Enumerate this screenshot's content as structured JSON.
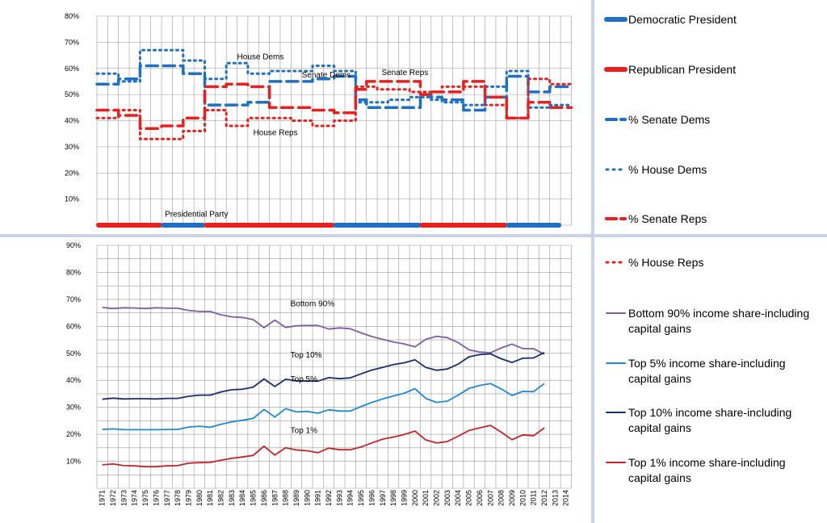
{
  "colors": {
    "dem_blue": "#1f6fc4",
    "rep_red": "#e8201e",
    "bottom90": "#7f5fa0",
    "top5": "#1e8ad2",
    "top10": "#1a2f6e",
    "top1": "#c3242b",
    "grid": "#9a9a9a",
    "splitter": "#c8d3e6"
  },
  "legend": {
    "items": [
      {
        "label": "Democratic President",
        "style": "dem-bar"
      },
      {
        "label": "Republican President",
        "style": "rep-bar"
      },
      {
        "label": "% Senate Dems",
        "style": "dem-dash"
      },
      {
        "label": "% House Dems",
        "style": "dem-dot"
      },
      {
        "label": "% Senate Reps",
        "style": "rep-dash"
      },
      {
        "label": "% House Reps",
        "style": "rep-dot"
      },
      {
        "label": "Bottom 90% income share-including capital gains",
        "line1": "Bottom 90% income share-including",
        "line2": "capital gains",
        "style": "bottom90"
      },
      {
        "label": "Top 5% income share-including capital gains",
        "line1": "Top 5% income share-including",
        "line2": "capital gains",
        "style": "top5"
      },
      {
        "label": "Top 10% income share-including capital gains",
        "line1": "Top 10% income share-including",
        "line2": "capital gains",
        "style": "top10"
      },
      {
        "label": "Top 1% income share-including capital gains",
        "line1": "Top 1% income share-including",
        "line2": "capital gains",
        "style": "top1"
      }
    ]
  },
  "chart_data": [
    {
      "type": "line",
      "ylim": [
        0,
        80
      ],
      "yticks": [
        "10%",
        "20%",
        "30%",
        "40%",
        "50%",
        "60%",
        "70%",
        "80%"
      ],
      "x": [
        1971,
        1972,
        1973,
        1974,
        1975,
        1976,
        1977,
        1978,
        1979,
        1980,
        1981,
        1982,
        1983,
        1984,
        1985,
        1986,
        1987,
        1988,
        1989,
        1990,
        1991,
        1992,
        1993,
        1994,
        1995,
        1996,
        1997,
        1998,
        1999,
        2000,
        2001,
        2002,
        2003,
        2004,
        2005,
        2006,
        2007,
        2008,
        2009,
        2010,
        2011,
        2012,
        2013,
        2014
      ],
      "series": [
        {
          "name": "% Senate Dems",
          "values": [
            54,
            54,
            56,
            56,
            61,
            61,
            61,
            61,
            58,
            58,
            46,
            46,
            46,
            46,
            47,
            47,
            55,
            55,
            55,
            55,
            56,
            56,
            57,
            57,
            48,
            45,
            45,
            45,
            45,
            45,
            50,
            49,
            48,
            48,
            44,
            44,
            49,
            49,
            57,
            57,
            51,
            51,
            53,
            53
          ]
        },
        {
          "name": "% House Dems",
          "values": [
            58,
            58,
            55,
            55,
            67,
            67,
            67,
            67,
            63,
            63,
            56,
            56,
            62,
            62,
            58,
            58,
            59,
            59,
            59,
            59,
            61,
            61,
            59,
            59,
            47,
            47,
            47,
            48,
            48,
            49,
            49,
            48,
            47,
            47,
            46,
            46,
            53,
            53,
            59,
            59,
            45,
            45,
            46,
            46
          ]
        },
        {
          "name": "% Senate Reps",
          "values": [
            44,
            44,
            42,
            42,
            37,
            37,
            38,
            38,
            41,
            41,
            53,
            53,
            54,
            54,
            53,
            53,
            45,
            45,
            45,
            45,
            44,
            44,
            43,
            43,
            52,
            55,
            55,
            55,
            55,
            55,
            50,
            51,
            51,
            51,
            55,
            55,
            49,
            49,
            41,
            41,
            47,
            47,
            45,
            45
          ]
        },
        {
          "name": "% House Reps",
          "values": [
            41,
            41,
            44,
            44,
            33,
            33,
            33,
            33,
            36,
            36,
            44,
            44,
            38,
            38,
            41,
            41,
            41,
            41,
            40,
            40,
            38,
            38,
            40,
            40,
            53,
            53,
            52,
            52,
            52,
            51,
            51,
            51,
            53,
            53,
            53,
            53,
            46,
            46,
            41,
            41,
            56,
            56,
            54,
            54
          ]
        }
      ],
      "presidential_party": [
        {
          "party": "Republican",
          "from": 1971,
          "to": 1977
        },
        {
          "party": "Democratic",
          "from": 1977,
          "to": 1981
        },
        {
          "party": "Republican",
          "from": 1981,
          "to": 1993
        },
        {
          "party": "Democratic",
          "from": 1993,
          "to": 2001
        },
        {
          "party": "Republican",
          "from": 2001,
          "to": 2009
        },
        {
          "party": "Democratic",
          "from": 2009,
          "to": 2014
        }
      ],
      "annotations": [
        {
          "text": "House Dems",
          "x": 1984,
          "y": 63.5
        },
        {
          "text": "Senate Dems",
          "x": 1990,
          "y": 56.5
        },
        {
          "text": "Senate Reps",
          "x": 1997.4,
          "y": 57.5
        },
        {
          "text": "House Reps",
          "x": 1985.5,
          "y": 34.5
        },
        {
          "text": "Presidential Party",
          "x": 1977.3,
          "y": 3.2
        }
      ],
      "grid": true
    },
    {
      "type": "line",
      "ylim": [
        0,
        90
      ],
      "yticks": [
        "10%",
        "20%",
        "30%",
        "40%",
        "50%",
        "60%",
        "70%",
        "80%",
        "90%"
      ],
      "x": [
        1971,
        1972,
        1973,
        1974,
        1975,
        1976,
        1977,
        1978,
        1979,
        1980,
        1981,
        1982,
        1983,
        1984,
        1985,
        1986,
        1987,
        1988,
        1989,
        1990,
        1991,
        1992,
        1993,
        1994,
        1995,
        1996,
        1997,
        1998,
        1999,
        2000,
        2001,
        2002,
        2003,
        2004,
        2005,
        2006,
        2007,
        2008,
        2009,
        2010,
        2011,
        2012
      ],
      "xtick_labels": [
        "1971",
        "1972",
        "1973",
        "1974",
        "1975",
        "1976",
        "1977",
        "1978",
        "1979",
        "1980",
        "1981",
        "1982",
        "1983",
        "1984",
        "1985",
        "1986",
        "1987",
        "1988",
        "1989",
        "1990",
        "1991",
        "1992",
        "1993",
        "1994",
        "1995",
        "1996",
        "1997",
        "1998",
        "1999",
        "2000",
        "2001",
        "2002",
        "2003",
        "2004",
        "2005",
        "2006",
        "2007",
        "2008",
        "2009",
        "2010",
        "2011",
        "2012",
        "2013",
        "2014"
      ],
      "series": [
        {
          "name": "Bottom 90% income share-including capital gains",
          "values": [
            67.0,
            66.6,
            66.9,
            66.8,
            66.6,
            66.9,
            66.7,
            66.7,
            65.9,
            65.5,
            65.5,
            64.3,
            63.5,
            63.3,
            62.5,
            59.5,
            62.3,
            59.6,
            60.2,
            60.3,
            60.3,
            59.0,
            59.4,
            59.1,
            57.6,
            56.2,
            55.2,
            54.2,
            53.5,
            52.4,
            55.2,
            56.3,
            55.8,
            54.0,
            51.3,
            50.5,
            50.2,
            52.0,
            53.4,
            51.8,
            51.7,
            49.7
          ]
        },
        {
          "name": "Top 10% income share-including capital gains",
          "values": [
            33.0,
            33.4,
            33.1,
            33.2,
            33.2,
            33.1,
            33.3,
            33.3,
            34.1,
            34.5,
            34.5,
            35.7,
            36.5,
            36.7,
            37.5,
            40.5,
            37.7,
            40.4,
            39.8,
            39.7,
            39.7,
            41.0,
            40.6,
            40.9,
            42.4,
            43.8,
            44.8,
            45.8,
            46.5,
            47.6,
            44.8,
            43.7,
            44.2,
            46.0,
            48.7,
            49.5,
            49.8,
            48.0,
            46.6,
            48.2,
            48.3,
            50.3
          ]
        },
        {
          "name": "Top 5% income share-including capital gains",
          "values": [
            21.8,
            22.0,
            21.7,
            21.7,
            21.7,
            21.7,
            21.8,
            21.8,
            22.7,
            23.0,
            22.6,
            23.7,
            24.6,
            25.2,
            25.9,
            29.2,
            26.4,
            29.5,
            28.3,
            28.5,
            27.8,
            29.1,
            28.6,
            28.6,
            30.3,
            31.8,
            33.1,
            34.2,
            35.2,
            36.9,
            33.3,
            31.8,
            32.3,
            34.5,
            37.0,
            38.1,
            38.8,
            36.8,
            34.4,
            35.9,
            35.8,
            38.8
          ]
        },
        {
          "name": "Top 1% income share-including capital gains",
          "values": [
            8.7,
            9.0,
            8.4,
            8.3,
            8.0,
            8.0,
            8.3,
            8.4,
            9.3,
            9.5,
            9.6,
            10.4,
            11.1,
            11.6,
            12.2,
            15.6,
            12.3,
            15.0,
            14.2,
            13.9,
            13.2,
            14.9,
            14.3,
            14.3,
            15.3,
            16.8,
            18.2,
            19.0,
            19.9,
            21.2,
            17.9,
            16.8,
            17.3,
            19.3,
            21.4,
            22.4,
            23.3,
            20.8,
            18.0,
            19.8,
            19.5,
            22.4
          ]
        }
      ],
      "annotations": [
        {
          "text": "Bottom 90%",
          "x": 1990,
          "y": 67.5
        },
        {
          "text": "Top 10%",
          "x": 1990,
          "y": 48.5
        },
        {
          "text": "Top 5%",
          "x": 1990,
          "y": 39.5
        },
        {
          "text": "Top 1%",
          "x": 1990,
          "y": 20.5
        }
      ],
      "grid": true
    }
  ]
}
